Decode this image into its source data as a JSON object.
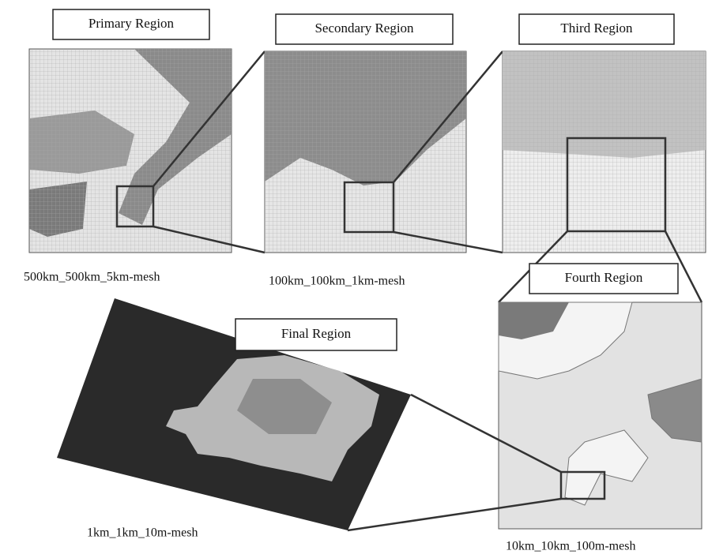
{
  "regions": [
    {
      "label": "Primary Region",
      "caption": "500km_500km_5km-mesh"
    },
    {
      "label": "Secondary Region",
      "caption": "100km_100km_1km-mesh"
    },
    {
      "label": "Third Region"
    },
    {
      "label": "Fourth Region",
      "caption": "10km_10km_100m-mesh"
    },
    {
      "label": "Final Region",
      "caption": "1km_1km_10m-mesh"
    }
  ]
}
